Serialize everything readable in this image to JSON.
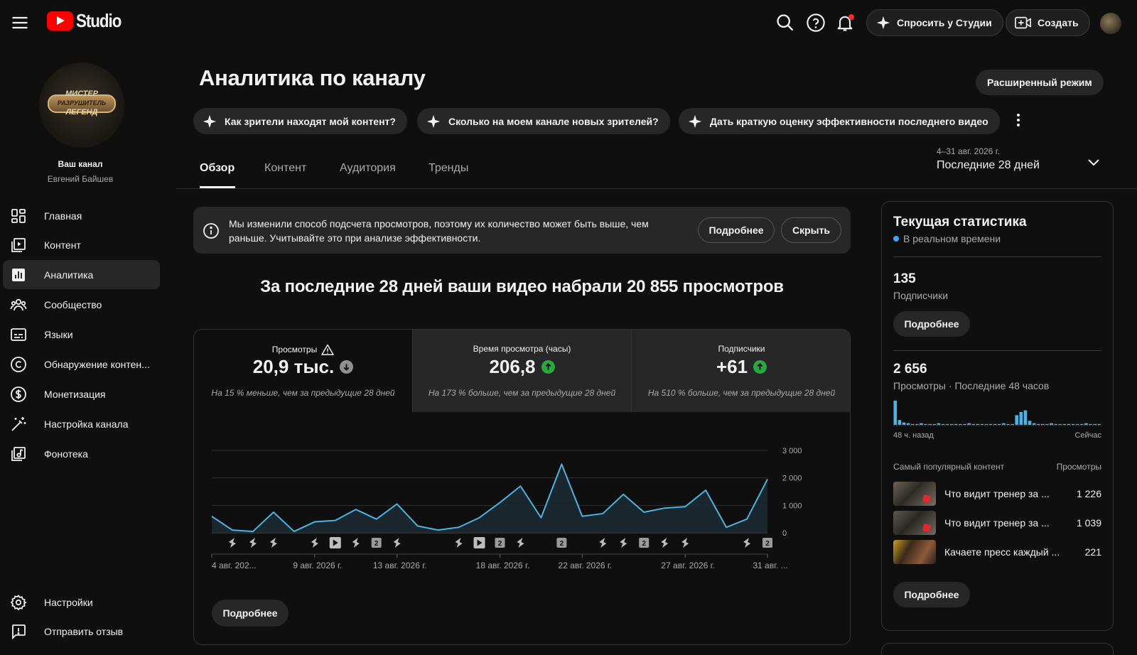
{
  "header": {
    "logo_text": "Studio",
    "ask_studio_label": "Спросить у Студии",
    "create_label": "Создать"
  },
  "sidebar": {
    "channel_title": "Ваш канал",
    "channel_owner": "Евгений Байшев",
    "channel_logo_text": [
      "МИСТЕР",
      "РАЗРУШИТЕЛЬ",
      "ЛЕГЕНД"
    ],
    "items": [
      {
        "label": "Главная",
        "icon": "dashboard-icon"
      },
      {
        "label": "Контент",
        "icon": "content-icon"
      },
      {
        "label": "Аналитика",
        "icon": "analytics-icon",
        "active": true
      },
      {
        "label": "Сообщество",
        "icon": "community-icon"
      },
      {
        "label": "Языки",
        "icon": "subtitles-icon"
      },
      {
        "label": "Обнаружение контен...",
        "icon": "copyright-icon"
      },
      {
        "label": "Монетизация",
        "icon": "monetization-icon"
      },
      {
        "label": "Настройка канала",
        "icon": "magic-wand-icon"
      },
      {
        "label": "Фонотека",
        "icon": "audio-library-icon"
      }
    ],
    "bottom": [
      {
        "label": "Настройки",
        "icon": "gear-icon"
      },
      {
        "label": "Отправить отзыв",
        "icon": "feedback-icon"
      }
    ]
  },
  "main": {
    "title": "Аналитика по каналу",
    "advanced_mode_label": "Расширенный режим",
    "chips": [
      "Как зрители находят мой контент?",
      "Сколько на моем канале новых зрителей?",
      "Дать краткую оценку эффективности последнего видео"
    ],
    "tabs": [
      "Обзор",
      "Контент",
      "Аудитория",
      "Тренды"
    ],
    "date_range": "4–31 авг. 2026 г.",
    "date_label": "Последние 28 дней",
    "notice": {
      "text": "Мы изменили способ подсчета просмотров, поэтому их количество может быть выше, чем раньше. Учитывайте это при анализе эффективности.",
      "more_label": "Подробнее",
      "hide_label": "Скрыть"
    },
    "headline": "За последние 28 дней ваши видео набрали 20 855 просмотров",
    "metrics": [
      {
        "label": "Просмотры",
        "value": "20,9 тыс.",
        "trend": "down",
        "note": "На 15 % меньше, чем за предыдущие 28 дней"
      },
      {
        "label": "Время просмотра (часы)",
        "value": "206,8",
        "trend": "up",
        "note": "На 173 % больше, чем за предыдущие 28 дней"
      },
      {
        "label": "Подписчики",
        "value": "+61",
        "trend": "up",
        "note": "На 510 % больше, чем за предыдущие 28 дней"
      }
    ],
    "details_label": "Подробнее"
  },
  "chart_data": {
    "type": "area",
    "ylim": [
      0,
      3000
    ],
    "yticks": [
      "3 000",
      "2 000",
      "1 000",
      "0"
    ],
    "ytick_values": [
      3000,
      2000,
      1000,
      0
    ],
    "x_tick_labels": [
      {
        "day": 0,
        "label": "4 авг. 202..."
      },
      {
        "day": 5,
        "label": "9 авг. 2026 г."
      },
      {
        "day": 9,
        "label": "13 авг. 2026 г."
      },
      {
        "day": 14,
        "label": "18 авг. 2026 г."
      },
      {
        "day": 18,
        "label": "22 авг. 2026 г."
      },
      {
        "day": 23,
        "label": "27 авг. 2026 г."
      },
      {
        "day": 27,
        "label": "31 авг. ..."
      }
    ],
    "series": [
      {
        "values": [
          600,
          100,
          50,
          750,
          50,
          400,
          450,
          850,
          500,
          1050,
          250,
          100,
          200,
          550,
          1100,
          1700,
          550,
          2500,
          600,
          700,
          1400,
          750,
          900,
          950,
          1550,
          200,
          500,
          1950
        ]
      }
    ],
    "markers": [
      {
        "day": 1,
        "kind": "short"
      },
      {
        "day": 2,
        "kind": "short"
      },
      {
        "day": 3,
        "kind": "short"
      },
      {
        "day": 5,
        "kind": "short"
      },
      {
        "day": 6,
        "kind": "video"
      },
      {
        "day": 7,
        "kind": "short"
      },
      {
        "day": 8,
        "kind": "count",
        "label": "2"
      },
      {
        "day": 9,
        "kind": "short"
      },
      {
        "day": 12,
        "kind": "short"
      },
      {
        "day": 13,
        "kind": "video"
      },
      {
        "day": 14,
        "kind": "count",
        "label": "2"
      },
      {
        "day": 15,
        "kind": "short"
      },
      {
        "day": 17,
        "kind": "count",
        "label": "2"
      },
      {
        "day": 19,
        "kind": "short"
      },
      {
        "day": 20,
        "kind": "short"
      },
      {
        "day": 21,
        "kind": "count",
        "label": "2"
      },
      {
        "day": 22,
        "kind": "short"
      },
      {
        "day": 23,
        "kind": "short"
      },
      {
        "day": 26,
        "kind": "short"
      },
      {
        "day": 27,
        "kind": "count",
        "label": "2"
      }
    ],
    "colors": {
      "line": "#4fb2e0",
      "fill": "#1c2a33"
    }
  },
  "realtime": {
    "title": "Текущая статистика",
    "live_label": "В реальном времени",
    "subscribers_value": "135",
    "subscribers_label": "Подписчики",
    "subs_details_label": "Подробнее",
    "views_value": "2 656",
    "views_label": "Просмотры · Последние 48 часов",
    "spark_left": "48 ч. назад",
    "spark_right": "Сейчас",
    "spark_values": [
      30,
      6,
      3,
      2,
      1,
      1,
      2,
      1,
      1,
      1,
      2,
      1,
      1,
      1,
      1,
      1,
      1,
      2,
      1,
      1,
      1,
      1,
      1,
      1,
      1,
      2,
      1,
      1,
      12,
      16,
      18,
      5,
      2,
      1,
      1,
      1,
      2,
      1,
      1,
      1,
      1,
      1,
      1,
      1,
      2,
      1,
      1,
      1
    ],
    "top_header": "Самый популярный контент",
    "top_col": "Просмотры",
    "top_items": [
      {
        "title": "Что видит тренер за ...",
        "views": "1 226"
      },
      {
        "title": "Что видит тренер за ...",
        "views": "1 039"
      },
      {
        "title": "Качаете пресс каждый ...",
        "views": "221"
      }
    ],
    "bottom_details_label": "Подробнее"
  }
}
